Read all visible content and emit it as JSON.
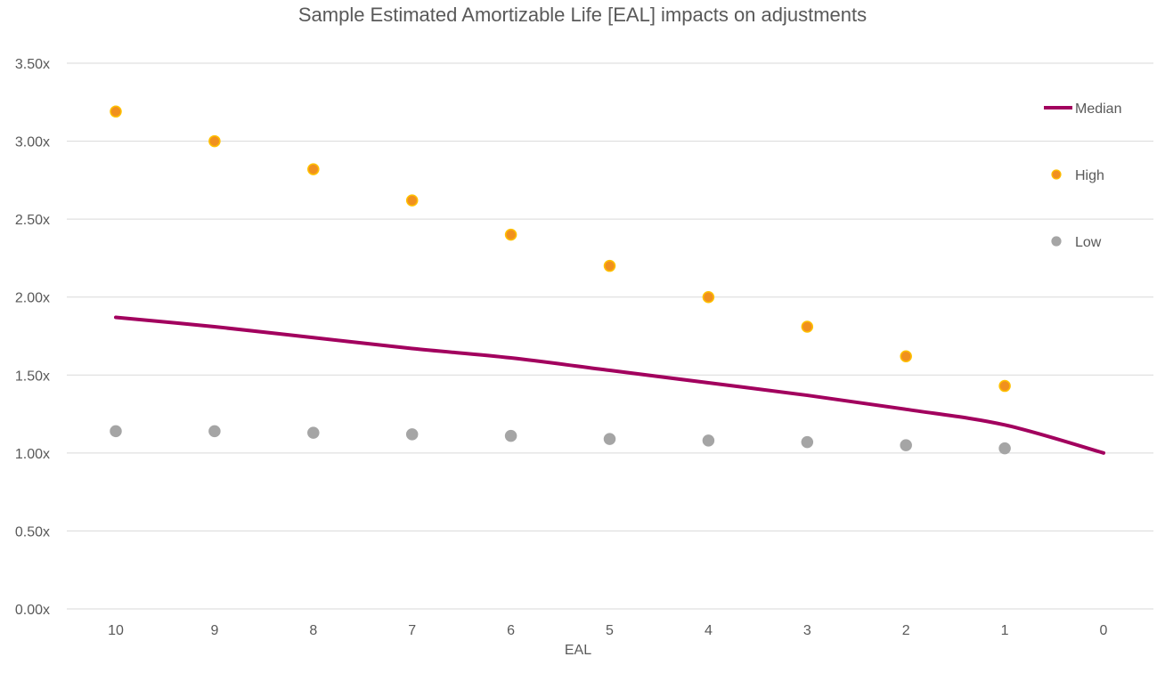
{
  "chart_data": {
    "type": "line",
    "title": "Sample Estimated Amortizable Life [EAL] impacts on adjustments",
    "xlabel": "EAL",
    "ylabel": "",
    "categories": [
      "10",
      "9",
      "8",
      "7",
      "6",
      "5",
      "4",
      "3",
      "2",
      "1",
      "0"
    ],
    "ylim": [
      0,
      3.5
    ],
    "yticks": [
      "0.00x",
      "0.50x",
      "1.00x",
      "1.50x",
      "2.00x",
      "2.50x",
      "3.00x",
      "3.50x"
    ],
    "grid": true,
    "legend_position": "right",
    "series": [
      {
        "name": "Median",
        "kind": "smooth-line",
        "color": "#A2005E",
        "values": [
          1.87,
          1.81,
          1.74,
          1.67,
          1.61,
          1.53,
          1.45,
          1.37,
          1.28,
          1.18,
          1.0
        ]
      },
      {
        "name": "High",
        "kind": "markers",
        "color": "#F0901E",
        "values": [
          3.19,
          3.0,
          2.82,
          2.62,
          2.4,
          2.2,
          2.0,
          1.81,
          1.62,
          1.43,
          null
        ]
      },
      {
        "name": "Low",
        "kind": "markers",
        "color": "#A5A5A5",
        "values": [
          1.14,
          1.14,
          1.13,
          1.12,
          1.11,
          1.09,
          1.08,
          1.07,
          1.05,
          1.03,
          null
        ]
      }
    ]
  }
}
